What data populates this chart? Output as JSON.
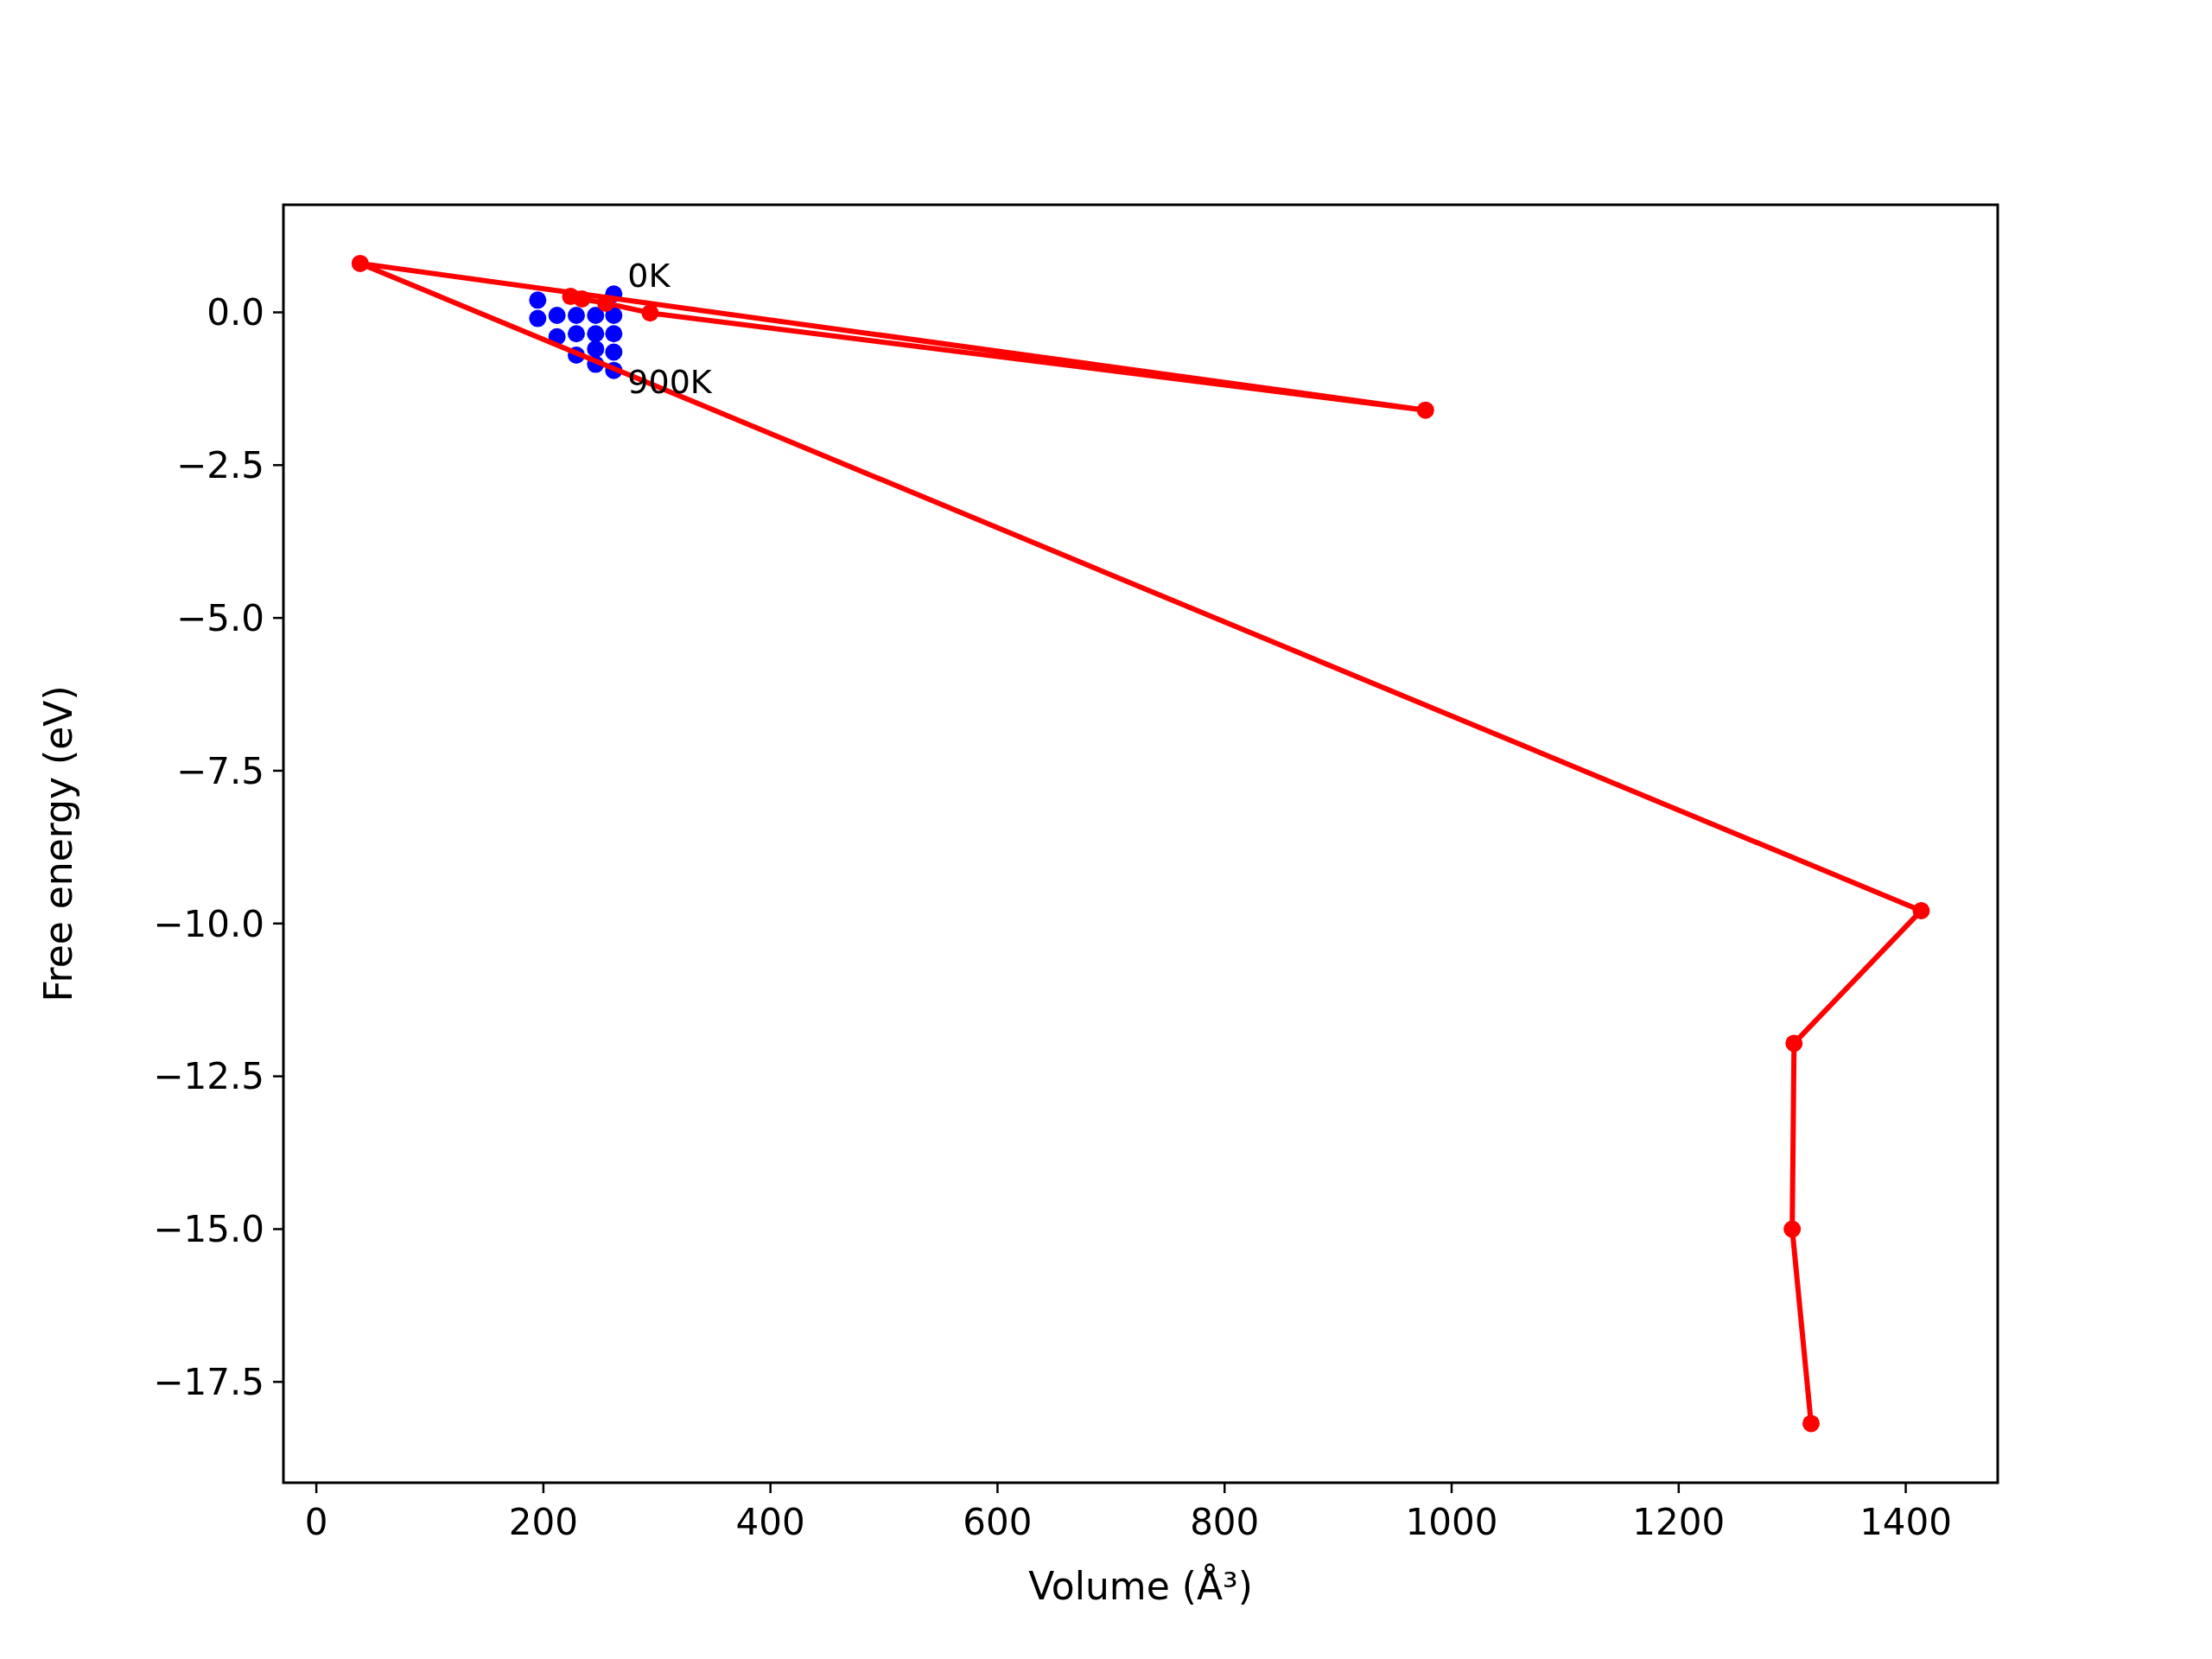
{
  "chart_data": {
    "type": "line",
    "xlabel": "Volume (Å³)",
    "ylabel": "Free energy (eV)",
    "xlim": [
      -29,
      1481
    ],
    "ylim": [
      -19.15,
      1.76
    ],
    "xticks": [
      0,
      200,
      400,
      600,
      800,
      1000,
      1200,
      1400
    ],
    "yticks": [
      {
        "value": 0,
        "label": "0.0"
      },
      {
        "value": -2.5,
        "label": "−2.5"
      },
      {
        "value": -5,
        "label": "−5.0"
      },
      {
        "value": -7.5,
        "label": "−7.5"
      },
      {
        "value": -10,
        "label": "−10.0"
      },
      {
        "value": -12.5,
        "label": "−12.5"
      },
      {
        "value": -15,
        "label": "−15.0"
      },
      {
        "value": -17.5,
        "label": "−17.5"
      }
    ],
    "grid": false,
    "marker": "circle",
    "line_style": "solid",
    "annotations": [
      {
        "text": "0K",
        "x": 262,
        "y": 0.3
      },
      {
        "text": "900K",
        "x": 262,
        "y": -0.95
      }
    ],
    "series": [
      {
        "type": "scatter",
        "color": "#0000ff",
        "x": [
          195,
          195,
          212,
          212,
          229,
          229,
          229,
          246,
          246,
          246,
          246,
          262,
          262,
          262,
          262,
          262
        ],
        "values": [
          0.2,
          -0.1,
          -0.05,
          -0.4,
          -0.05,
          -0.35,
          -0.7,
          -0.05,
          -0.35,
          -0.6,
          -0.85,
          0.3,
          -0.05,
          -0.35,
          -0.65,
          -0.95
        ]
      },
      {
        "color": "#ff0000",
        "x": [
          1316.6,
          1300,
          1301.6,
          1413.6,
          38.6,
          977,
          294,
          255,
          234,
          224
        ],
        "values": [
          -18.18,
          -15.0,
          -11.96,
          -9.79,
          0.8,
          -1.6,
          -0.01,
          0.15,
          0.22,
          0.26
        ]
      }
    ]
  }
}
